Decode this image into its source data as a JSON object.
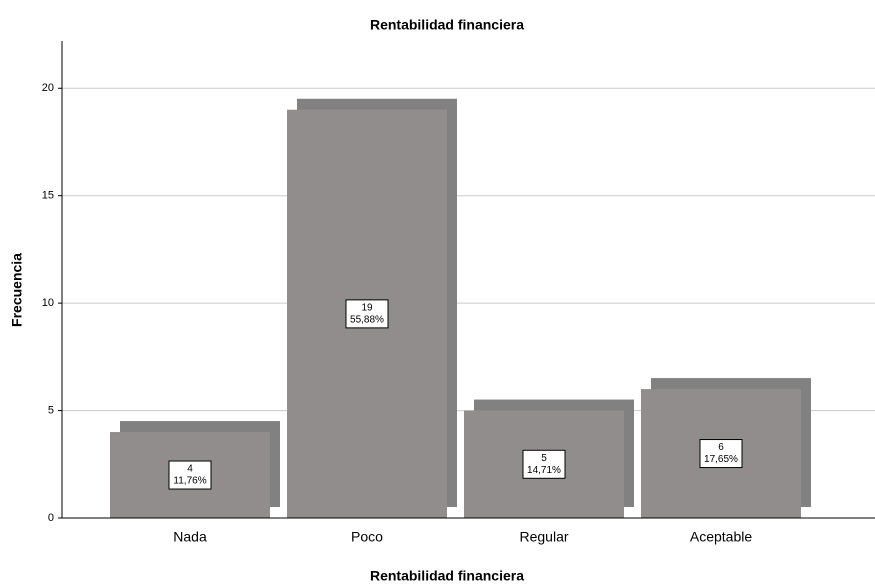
{
  "chart_data": {
    "type": "bar",
    "title": "Rentabilidad financiera",
    "xlabel": "Rentabilidad financiera",
    "ylabel": "Frecuencia",
    "categories": [
      "Nada",
      "Poco",
      "Regular",
      "Aceptable"
    ],
    "values": [
      4,
      19,
      5,
      6
    ],
    "percents": [
      11.76,
      55.88,
      14.71,
      17.65
    ],
    "percent_labels": [
      "11,76%",
      "55,88%",
      "14,71%",
      "17,65%"
    ],
    "color": "#918d8c",
    "shadow_color": "#818181",
    "ylim": [
      0,
      22.2
    ],
    "yticks": [
      0,
      5,
      10,
      15,
      20
    ],
    "grid": true
  }
}
